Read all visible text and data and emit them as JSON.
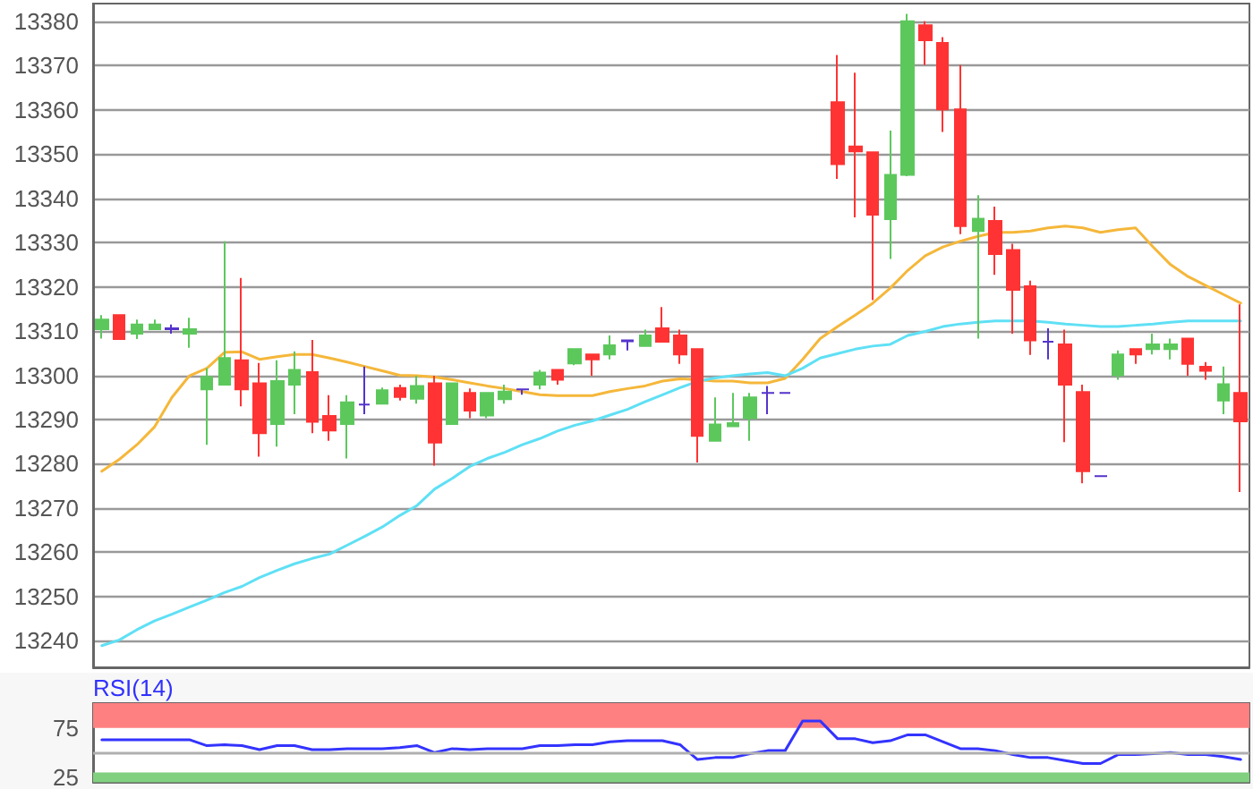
{
  "chart_data": [
    {
      "type": "candlestick",
      "categories": [
        null,
        null,
        null,
        null,
        null,
        null,
        null,
        null,
        null,
        null,
        null,
        null,
        null,
        null,
        null,
        null,
        null,
        null,
        null,
        null,
        null,
        null,
        null,
        null,
        null,
        null,
        null,
        null,
        null,
        null,
        null,
        null,
        null,
        null,
        null,
        null,
        null,
        null,
        null,
        null,
        null,
        null,
        null,
        null,
        null,
        null,
        null,
        null,
        null,
        null,
        null,
        null,
        null,
        null,
        null,
        null,
        null,
        null,
        null,
        null,
        null,
        null,
        null,
        null,
        null,
        null
      ],
      "ohlc": [
        [
          13310.4,
          13313.6,
          13308.3,
          13312.6
        ],
        [
          13313.6,
          13313.6,
          13308.2,
          13308.2
        ],
        [
          13309.4,
          13312.6,
          13308.2,
          13311.5
        ],
        [
          13310.4,
          13312.6,
          13310.4,
          13311.5
        ],
        [
          13310.4,
          13311.5,
          13309.4,
          13310.6
        ],
        [
          13309.4,
          13313,
          13306.2,
          13310.4
        ],
        [
          13296.8,
          13301.6,
          13284.3,
          13299.6
        ],
        [
          13297.9,
          13330.3,
          13297.9,
          13303.9
        ],
        [
          13303.4,
          13322,
          13293,
          13296.8
        ],
        [
          13298.2,
          13302.8,
          13281.6,
          13286.9
        ],
        [
          13289,
          13303.4,
          13283.9,
          13298.7
        ],
        [
          13297.9,
          13305.4,
          13291.2,
          13301.2
        ],
        [
          13300.7,
          13308,
          13286.9,
          13289.5
        ],
        [
          13290.8,
          13295.5,
          13285.2,
          13287.5
        ],
        [
          13289,
          13295.5,
          13281.2,
          13293.9
        ],
        [
          13293.4,
          13302,
          13291.2,
          13293.4
        ],
        [
          13293.6,
          13297.2,
          13293.4,
          13296.6
        ],
        [
          13297.1,
          13297.9,
          13294.3,
          13295.1
        ],
        [
          13294.7,
          13299.9,
          13293.6,
          13297.6
        ],
        [
          13298.2,
          13299.9,
          13279.6,
          13284.8
        ],
        [
          13289,
          13298.2,
          13289,
          13298.2
        ],
        [
          13296,
          13297,
          13290.3,
          13292
        ],
        [
          13290.9,
          13296,
          13290.3,
          13296
        ],
        [
          13294.6,
          13297.9,
          13293.6,
          13296.3
        ],
        [
          13296.8,
          13296.8,
          13295.6,
          13296.8
        ],
        [
          13297.9,
          13301.2,
          13296.8,
          13300.6
        ],
        [
          13301.2,
          13301.2,
          13297.9,
          13299
        ],
        [
          13302.7,
          13305.9,
          13302.3,
          13305.9
        ],
        [
          13304.7,
          13304.7,
          13299.9,
          13303.6
        ],
        [
          13304.7,
          13309,
          13303.6,
          13306.8
        ],
        [
          13307.7,
          13307.9,
          13305.6,
          13307.9
        ],
        [
          13306.6,
          13310.3,
          13306.6,
          13309
        ],
        [
          13310.6,
          13315.4,
          13307.6,
          13307.6
        ],
        [
          13309,
          13310.3,
          13302.6,
          13304.7
        ],
        [
          13305.9,
          13305.9,
          13280.3,
          13286.3
        ],
        [
          13285.2,
          13295,
          13285.2,
          13288.9
        ],
        [
          13288.5,
          13296,
          13288.5,
          13289.2
        ],
        [
          13290.3,
          13296,
          13285.2,
          13295
        ],
        [
          13296,
          13297.6,
          13291.2,
          13296
        ],
        [
          13296,
          13296,
          13296,
          13296
        ],
        null,
        null,
        [
          13361.7,
          13372.4,
          13344.4,
          13347.7
        ],
        [
          13351.7,
          13368.4,
          13335.7,
          13350.6
        ],
        [
          13350.4,
          13350.4,
          13317,
          13336.3
        ],
        [
          13335.3,
          13355.3,
          13326.3,
          13345.3
        ],
        [
          13345.3,
          13381.7,
          13345,
          13380
        ],
        [
          13379.1,
          13380,
          13370.1,
          13375.7
        ],
        [
          13375.1,
          13376.4,
          13355,
          13360.1
        ],
        [
          13360.1,
          13370.1,
          13331.9,
          13333.7
        ],
        [
          13332.6,
          13340.7,
          13308.3,
          13335.4
        ],
        [
          13334.9,
          13338.1,
          13322.7,
          13327.4
        ],
        [
          13328.3,
          13329.7,
          13309.4,
          13319.3
        ],
        [
          13320.1,
          13321.4,
          13304.6,
          13307.9
        ],
        [
          13307.6,
          13310.6,
          13303.6,
          13307.6
        ],
        [
          13307,
          13310.3,
          13284.9,
          13297.9
        ],
        [
          13296.2,
          13297.9,
          13275.6,
          13278.3
        ],
        [
          13277.2,
          13277.2,
          13277.2,
          13277.2
        ],
        [
          13300,
          13305.6,
          13299,
          13304.7
        ],
        [
          13305.9,
          13305.9,
          13302.6,
          13304.7
        ],
        [
          13305.9,
          13309.4,
          13304.7,
          13307
        ],
        [
          13305.9,
          13308.3,
          13303.6,
          13307
        ],
        [
          13308.3,
          13308.3,
          13299.9,
          13302.6
        ],
        [
          13301.9,
          13303,
          13299,
          13301
        ],
        [
          13294.3,
          13302,
          13291.2,
          13298
        ],
        [
          13296,
          13316,
          13273.6,
          13289.6
        ]
      ],
      "colors": [
        "#5cc85c",
        "#ff3333",
        "#5cc85c",
        "#5cc85c",
        "#5533cc",
        "#5cc85c",
        "#5cc85c",
        "#5cc85c",
        "#ff3333",
        "#ff3333",
        "#5cc85c",
        "#5cc85c",
        "#ff3333",
        "#ff3333",
        "#5cc85c",
        "#5533cc",
        "#5cc85c",
        "#ff3333",
        "#5cc85c",
        "#ff3333",
        "#5cc85c",
        "#ff3333",
        "#5cc85c",
        "#5cc85c",
        "#5533cc",
        "#5cc85c",
        "#ff3333",
        "#5cc85c",
        "#ff3333",
        "#5cc85c",
        "#5533cc",
        "#5cc85c",
        "#ff3333",
        "#ff3333",
        "#ff3333",
        "#5cc85c",
        "#5cc85c",
        "#5cc85c",
        "#5533cc",
        "#5533cc",
        null,
        null,
        "#ff3333",
        "#ff3333",
        "#ff3333",
        "#5cc85c",
        "#5cc85c",
        "#ff3333",
        "#ff3333",
        "#ff3333",
        "#5cc85c",
        "#ff3333",
        "#ff3333",
        "#ff3333",
        "#5533cc",
        "#ff3333",
        "#ff3333",
        "#5533cc",
        "#5cc85c",
        "#ff3333",
        "#5cc85c",
        "#5cc85c",
        "#ff3333",
        "#ff3333",
        "#5cc85c",
        "#ff3333"
      ],
      "series": [
        {
          "type": "line",
          "color": "#f5b73a",
          "values": [
            13278.3,
            13281,
            13284.3,
            13288.3,
            13295,
            13299.9,
            13301.6,
            13305.2,
            13305.3,
            13303.6,
            13304.2,
            13304.7,
            13304.7,
            13303.9,
            13303,
            13302,
            13301,
            13300,
            13299.9,
            13299.6,
            13299,
            13298.3,
            13297.6,
            13297,
            13296.3,
            13295.6,
            13295.4,
            13295.4,
            13295.4,
            13296.3,
            13297,
            13297.6,
            13298.7,
            13299.2,
            13299,
            13298.7,
            13298.7,
            13298.3,
            13298.3,
            13299.3,
            13303.6,
            13308.3,
            13311,
            13313.6,
            13316.3,
            13319.7,
            13323.7,
            13327,
            13329,
            13330.3,
            13331.4,
            13332.3,
            13332.3,
            13332.6,
            13333.3,
            13333.7,
            13333.3,
            13332.3,
            13332.9,
            13333.3,
            13329,
            13325,
            13322.3,
            13320.3,
            13318.3,
            13316.3
          ]
        },
        {
          "type": "line",
          "color": "#5fe0f5",
          "values": [
            13238.9,
            13240.2,
            13242.5,
            13244.5,
            13246,
            13247.6,
            13249.2,
            13250.9,
            13252.3,
            13254.3,
            13255.9,
            13257.4,
            13258.6,
            13259.6,
            13261.6,
            13263.6,
            13265.7,
            13268.3,
            13270.6,
            13274.3,
            13276.7,
            13279.4,
            13281.2,
            13282.6,
            13284.3,
            13285.7,
            13287.4,
            13288.7,
            13289.7,
            13291,
            13292.3,
            13294,
            13295.6,
            13297.2,
            13298.6,
            13299.4,
            13299.9,
            13300.3,
            13300.6,
            13299.9,
            13301.6,
            13303.9,
            13304.9,
            13305.9,
            13306.6,
            13307,
            13309,
            13309.9,
            13311,
            13311.6,
            13312,
            13312.3,
            13312.3,
            13312.3,
            13312,
            13311.6,
            13311.3,
            13311,
            13311,
            13311.3,
            13311.6,
            13312,
            13312.3,
            13312.3,
            13312.3,
            13312.3
          ]
        }
      ],
      "ylim": [
        13234,
        13384
      ],
      "yticks": [
        13240,
        13250,
        13260,
        13270,
        13280,
        13290,
        13300,
        13310,
        13320,
        13330,
        13340,
        13350,
        13360,
        13370,
        13380
      ],
      "grid": "y",
      "tick_labels": "y",
      "marker": "none",
      "line_style": "solid"
    },
    {
      "type": "line",
      "title": "RSI(14)",
      "categories": [
        null,
        null,
        null,
        null,
        null,
        null,
        null,
        null,
        null,
        null,
        null,
        null,
        null,
        null,
        null,
        null,
        null,
        null,
        null,
        null,
        null,
        null,
        null,
        null,
        null,
        null,
        null,
        null,
        null,
        null,
        null,
        null,
        null,
        null,
        null,
        null,
        null,
        null,
        null,
        null,
        null,
        null,
        null,
        null,
        null,
        null,
        null,
        null,
        null,
        null,
        null,
        null,
        null,
        null,
        null,
        null,
        null,
        null,
        null,
        null,
        null,
        null,
        null,
        null,
        null,
        null
      ],
      "series": [
        {
          "color": "#3333ff",
          "values": [
            63,
            63,
            63,
            63,
            63,
            63,
            57,
            58,
            57,
            53,
            57,
            57,
            53,
            53,
            54,
            54,
            54,
            55,
            57,
            50,
            54,
            53,
            54,
            54,
            54,
            57,
            57,
            58,
            58,
            61,
            62,
            62,
            62,
            58,
            43,
            45,
            45,
            49,
            52,
            52,
            82,
            82,
            64,
            64,
            60,
            62,
            68,
            68,
            61,
            54,
            54,
            52,
            48,
            45,
            45,
            42,
            39,
            39,
            48,
            48,
            49,
            50,
            48,
            48,
            46,
            43
          ]
        }
      ],
      "ylim": [
        20,
        100
      ],
      "yticks": [
        25,
        75
      ],
      "bands": [
        {
          "axis": "y",
          "from": 75,
          "to": 100,
          "color": "#ff8080"
        },
        {
          "axis": "y",
          "from": 20,
          "to": 30,
          "color": "#80d080"
        }
      ],
      "ref_lines": [
        {
          "axis": "y",
          "value": 50,
          "color": "#b0b0b0"
        }
      ],
      "grid": false,
      "tick_labels": "y",
      "marker": "none",
      "line_style": "solid"
    }
  ]
}
